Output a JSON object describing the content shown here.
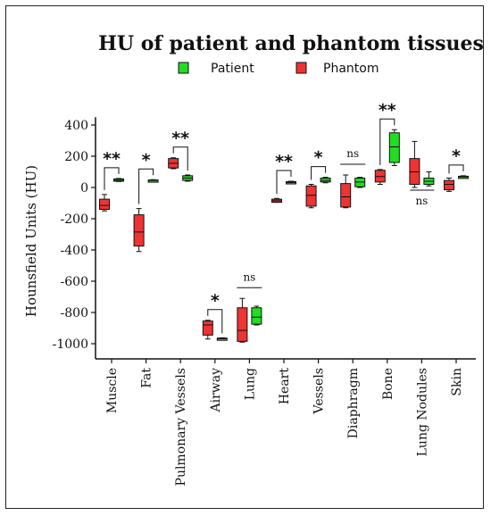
{
  "chart_data": {
    "type": "box",
    "title": "HU of patient and phantom tissues",
    "ylabel": "Hounsfield Units (HU)",
    "xlabel": "",
    "ylim": [
      -1100,
      450
    ],
    "yticks": [
      400,
      200,
      0,
      -200,
      -400,
      -600,
      -800,
      -1000
    ],
    "legend": {
      "placement": "top",
      "items": [
        {
          "name": "Patient",
          "color": "#22dd22"
        },
        {
          "name": "Phantom",
          "color": "#ee3333"
        }
      ]
    },
    "categories": [
      "Muscle",
      "Fat",
      "Pulmonary Vessels",
      "Airway",
      "Lung",
      "Heart",
      "Vessels",
      "Diaphragm",
      "Bone",
      "Lung Nodules",
      "Skin"
    ],
    "series": [
      {
        "name": "Phantom",
        "color": "#ee3333",
        "boxes": [
          {
            "min": -150,
            "q1": -140,
            "median": -115,
            "q3": -75,
            "max": -45
          },
          {
            "min": -410,
            "q1": -375,
            "median": -285,
            "q3": -175,
            "max": -135
          },
          {
            "min": 120,
            "q1": 125,
            "median": 155,
            "q3": 185,
            "max": 190
          },
          {
            "min": -970,
            "q1": -945,
            "median": -880,
            "q3": -855,
            "max": -850
          },
          {
            "min": -990,
            "q1": -985,
            "median": -915,
            "q3": -770,
            "max": -710
          },
          {
            "min": -95,
            "q1": -95,
            "median": -85,
            "q3": -75,
            "max": -70
          },
          {
            "min": -130,
            "q1": -120,
            "median": -50,
            "q3": 10,
            "max": 20
          },
          {
            "min": -130,
            "q1": -125,
            "median": -60,
            "q3": 25,
            "max": 80
          },
          {
            "min": 20,
            "q1": 35,
            "median": 70,
            "q3": 110,
            "max": 115
          },
          {
            "min": 0,
            "q1": 20,
            "median": 100,
            "q3": 185,
            "max": 295
          },
          {
            "min": -25,
            "q1": -15,
            "median": 20,
            "q3": 45,
            "max": 60
          }
        ]
      },
      {
        "name": "Patient",
        "color": "#22dd22",
        "boxes": [
          {
            "min": 38,
            "q1": 40,
            "median": 47,
            "q3": 55,
            "max": 58
          },
          {
            "min": 40,
            "q1": 42,
            "median": 45,
            "q3": 48,
            "max": 50
          },
          {
            "min": 40,
            "q1": 45,
            "median": 60,
            "q3": 75,
            "max": 80
          },
          {
            "min": -975,
            "q1": -972,
            "median": -968,
            "q3": -964,
            "max": -962
          },
          {
            "min": -880,
            "q1": -875,
            "median": -830,
            "q3": -770,
            "max": -760
          },
          {
            "min": 25,
            "q1": 28,
            "median": 32,
            "q3": 37,
            "max": 40
          },
          {
            "min": 30,
            "q1": 35,
            "median": 45,
            "q3": 60,
            "max": 65
          },
          {
            "min": 0,
            "q1": 5,
            "median": 35,
            "q3": 60,
            "max": 65
          },
          {
            "min": 140,
            "q1": 160,
            "median": 260,
            "q3": 350,
            "max": 370
          },
          {
            "min": 10,
            "q1": 20,
            "median": 40,
            "q3": 60,
            "max": 100
          },
          {
            "min": 60,
            "q1": 62,
            "median": 68,
            "q3": 72,
            "max": 75
          }
        ]
      }
    ],
    "significance": [
      {
        "category": "Muscle",
        "label": "**"
      },
      {
        "category": "Fat",
        "label": "*"
      },
      {
        "category": "Pulmonary Vessels",
        "label": "**"
      },
      {
        "category": "Airway",
        "label": "*"
      },
      {
        "category": "Lung",
        "label": "ns"
      },
      {
        "category": "Heart",
        "label": "**"
      },
      {
        "category": "Vessels",
        "label": "*"
      },
      {
        "category": "Diaphragm",
        "label": "ns"
      },
      {
        "category": "Bone",
        "label": "**"
      },
      {
        "category": "Lung Nodules",
        "label": "ns"
      },
      {
        "category": "Skin",
        "label": "*"
      }
    ]
  }
}
